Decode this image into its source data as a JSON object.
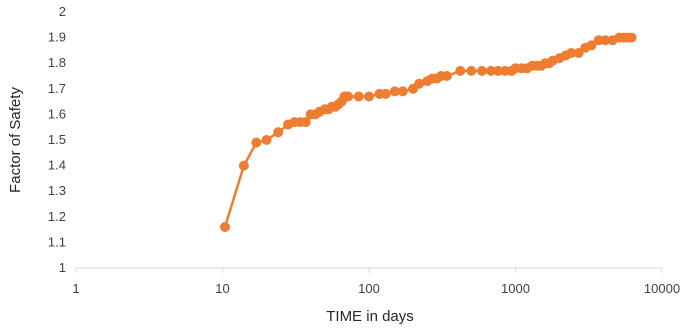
{
  "chart_data": {
    "type": "line",
    "title": "",
    "xlabel": "TIME in days",
    "ylabel": "Factor of Safety",
    "xscale": "log",
    "xlim": [
      1,
      10000
    ],
    "ylim": [
      1,
      2
    ],
    "xticks": [
      1,
      10,
      100,
      1000,
      10000
    ],
    "xtick_labels": [
      "1",
      "10",
      "100",
      "1000",
      "10000"
    ],
    "yticks": [
      1,
      1.1,
      1.2,
      1.3,
      1.4,
      1.5,
      1.6,
      1.7,
      1.8,
      1.9,
      2
    ],
    "ytick_labels": [
      "1",
      "1.1",
      "1.2",
      "1.3",
      "1.4",
      "1.5",
      "1.6",
      "1.7",
      "1.8",
      "1.9",
      "2"
    ],
    "grid": false,
    "legend": "none",
    "series_color": "#ED7D31",
    "axis_color": "#D9D9D9",
    "series": [
      {
        "x": [
          10.4,
          14,
          17,
          20,
          24,
          28,
          31,
          34,
          37,
          40,
          43,
          46,
          50,
          53,
          56,
          59,
          62,
          65,
          68,
          72,
          85,
          100,
          118,
          130,
          150,
          170,
          200,
          220,
          250,
          270,
          290,
          310,
          340,
          420,
          500,
          590,
          680,
          760,
          850,
          940,
          1000,
          1100,
          1200,
          1300,
          1400,
          1500,
          1600,
          1700,
          1800,
          2000,
          2200,
          2400,
          2700,
          3000,
          3300,
          3700,
          4100,
          4600,
          5100,
          5500,
          5900,
          6200
        ],
        "y": [
          1.16,
          1.4,
          1.49,
          1.5,
          1.53,
          1.56,
          1.57,
          1.57,
          1.57,
          1.6,
          1.6,
          1.61,
          1.62,
          1.62,
          1.63,
          1.63,
          1.64,
          1.65,
          1.67,
          1.67,
          1.67,
          1.67,
          1.68,
          1.68,
          1.69,
          1.69,
          1.7,
          1.72,
          1.73,
          1.74,
          1.74,
          1.75,
          1.75,
          1.77,
          1.77,
          1.77,
          1.77,
          1.77,
          1.77,
          1.77,
          1.78,
          1.78,
          1.78,
          1.79,
          1.79,
          1.79,
          1.8,
          1.8,
          1.81,
          1.82,
          1.83,
          1.84,
          1.84,
          1.86,
          1.87,
          1.89,
          1.89,
          1.89,
          1.9,
          1.9,
          1.9,
          1.9
        ]
      }
    ]
  }
}
